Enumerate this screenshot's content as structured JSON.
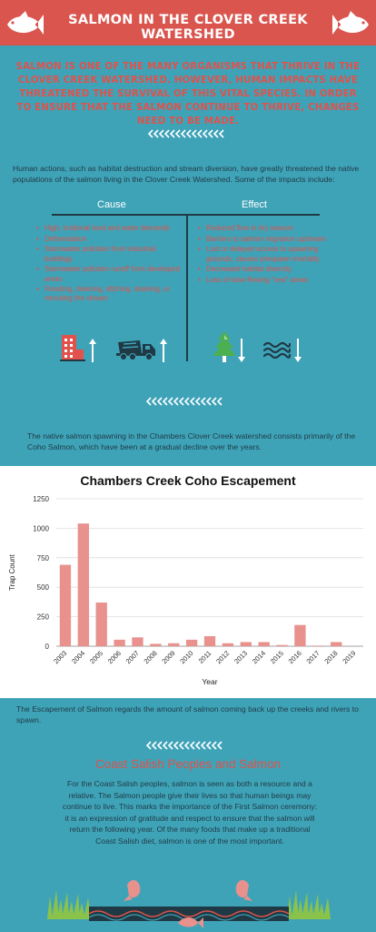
{
  "header": {
    "title": "Salmon in the Clover Creek Watershed"
  },
  "intro": {
    "text": "Salmon is one of the many organisms that thrive in the Clover Creek Watershed. However, human impacts have threatened the survival of this vital species. In order to ensure that the Salmon continue to thrive, changes need to be made."
  },
  "impacts": {
    "intro": "Human actions, such as habitat destruction and stream diversion, have greatly threatened the native populations of the salmon living in the Clover Creek Watershed. Some of the impacts include:",
    "cause_heading": "Cause",
    "effect_heading": "Effect",
    "causes": [
      "High, irrational land and water demands",
      "Deforestation",
      "Stormwater pollution from industrial buildings",
      "Stormwater pollution runoff from developed areas",
      "Flooding, cleaning, ditching, draining, or rerouting the stream"
    ],
    "effects": [
      "Reduced flow in dry season",
      "Barriers to salmon migration upstream",
      "Lost or delayed access to spawning grounds, causes prespawn mortality",
      "Decreased habitat diversity",
      "Loss of slow-flowing \"rest\" areas"
    ],
    "icons": [
      "factory-icon",
      "arrow-up-icon",
      "cement-truck-icon",
      "arrow-up-icon",
      "tree-icon",
      "arrow-down-icon",
      "water-waves-icon",
      "arrow-down-icon"
    ]
  },
  "spawning": {
    "text": "The native salmon spawning in the Chambers Clover Creek watershed consists primarily of the Coho Salmon, which have been at a gradual decline over the years."
  },
  "chart_data": {
    "type": "bar",
    "title": "Chambers Creek Coho Escapement",
    "xlabel": "Year",
    "ylabel": "Trap Count",
    "categories": [
      "2003",
      "2004",
      "2005",
      "2006",
      "2007",
      "2008",
      "2009",
      "2010",
      "2011",
      "2012",
      "2013",
      "2014",
      "2015",
      "2016",
      "2017",
      "2018",
      "2019"
    ],
    "values": [
      690,
      1040,
      370,
      55,
      75,
      20,
      25,
      55,
      85,
      25,
      35,
      35,
      10,
      180,
      5,
      35,
      0
    ],
    "ylim": [
      0,
      1250
    ],
    "yticks": [
      0,
      250,
      500,
      750,
      1000,
      1250
    ],
    "grid": true,
    "colors": {
      "bar": "#e8918d",
      "grid": "#dddddd"
    }
  },
  "escapement": {
    "text": "The Escapement of Salmon regards the amount of salmon coming back up the creeks and rivers to spawn."
  },
  "salish": {
    "title": "Coast Salish Peoples and Salmon",
    "text": "For the Coast Salish peoples, salmon is seen as both a resource and a relative. The Salmon people give their lives so that human beings may continue to live. This marks the importance of the First Salmon ceremony: it is an expression of gratitude and respect to ensure that the salmon will return the following year. Of the many foods that make up a traditional Coast Salish diet, salmon is one of the most important."
  },
  "colors": {
    "background": "#3fa3b8",
    "accent": "#e0524b",
    "banner": "#d9554e",
    "dark": "#1f3a45"
  }
}
